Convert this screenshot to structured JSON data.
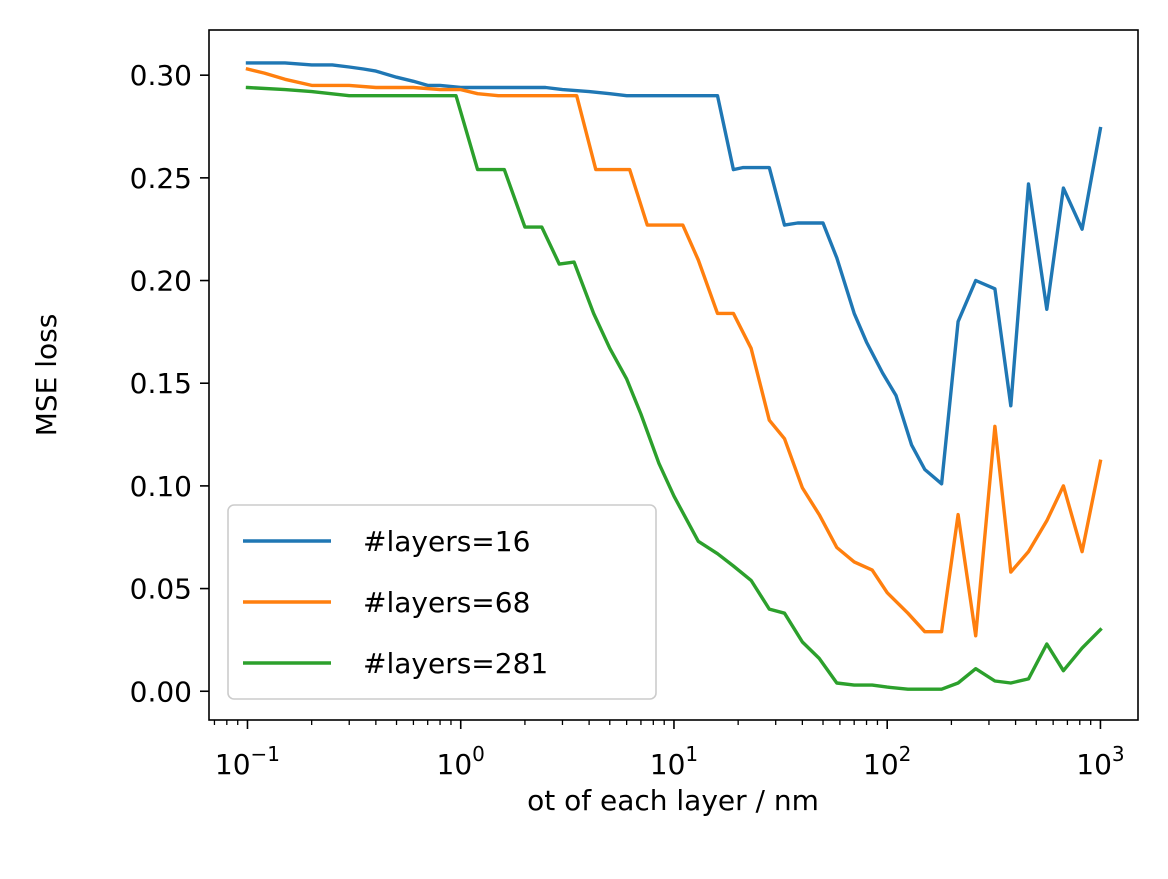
{
  "chart_data": {
    "type": "line",
    "title": "",
    "xlabel": "ot of each layer / nm",
    "ylabel": "MSE loss",
    "xscale": "log",
    "xlim": [
      0.066,
      1500
    ],
    "ylim": [
      -0.014,
      0.322
    ],
    "grid": false,
    "legend_position": "lower-left",
    "x_ticks": [
      {
        "value": 0.1,
        "base": "10",
        "exp": "−1"
      },
      {
        "value": 1,
        "base": "10",
        "exp": "0"
      },
      {
        "value": 10,
        "base": "10",
        "exp": "1"
      },
      {
        "value": 100,
        "base": "10",
        "exp": "2"
      },
      {
        "value": 1000,
        "base": "10",
        "exp": "3"
      }
    ],
    "y_ticks": [
      {
        "value": 0.0,
        "label": "0.00"
      },
      {
        "value": 0.05,
        "label": "0.05"
      },
      {
        "value": 0.1,
        "label": "0.10"
      },
      {
        "value": 0.15,
        "label": "0.15"
      },
      {
        "value": 0.2,
        "label": "0.20"
      },
      {
        "value": 0.25,
        "label": "0.25"
      },
      {
        "value": 0.3,
        "label": "0.30"
      }
    ],
    "series": [
      {
        "name": "#layers=16",
        "color": "#1f77b4",
        "x": [
          0.1,
          0.12,
          0.15,
          0.2,
          0.25,
          0.3,
          0.35,
          0.4,
          0.5,
          0.6,
          0.7,
          0.8,
          1.0,
          1.2,
          1.5,
          2.0,
          2.5,
          3.0,
          4.0,
          5.0,
          6.0,
          7.0,
          8.0,
          10.0,
          12.0,
          15.0,
          16.0,
          19.0,
          21.0,
          24.0,
          28.0,
          33.0,
          38.0,
          43.0,
          50.0,
          58.0,
          70.0,
          80.0,
          95.0,
          110.0,
          130.0,
          150.0,
          180.0,
          215.0,
          260.0,
          320.0,
          380.0,
          460.0,
          560.0,
          670.0,
          820.0,
          1000.0
        ],
        "y": [
          0.306,
          0.306,
          0.306,
          0.305,
          0.305,
          0.304,
          0.303,
          0.302,
          0.299,
          0.297,
          0.295,
          0.295,
          0.294,
          0.294,
          0.294,
          0.294,
          0.294,
          0.293,
          0.292,
          0.291,
          0.29,
          0.29,
          0.29,
          0.29,
          0.29,
          0.29,
          0.29,
          0.254,
          0.255,
          0.255,
          0.255,
          0.227,
          0.228,
          0.228,
          0.228,
          0.211,
          0.184,
          0.17,
          0.155,
          0.144,
          0.12,
          0.108,
          0.101,
          0.18,
          0.2,
          0.196,
          0.139,
          0.247,
          0.186,
          0.245,
          0.225,
          0.274
        ]
      },
      {
        "name": "#layers=68",
        "color": "#ff7f0e",
        "x": [
          0.1,
          0.12,
          0.15,
          0.2,
          0.25,
          0.3,
          0.4,
          0.5,
          0.6,
          0.8,
          1.0,
          1.2,
          1.5,
          2.0,
          2.5,
          3.0,
          3.5,
          4.3,
          5.0,
          6.2,
          7.5,
          9.0,
          11.0,
          13.0,
          16.0,
          19.0,
          23.0,
          28.0,
          33.0,
          40.0,
          48.0,
          58.0,
          70.0,
          85.0,
          100.0,
          125.0,
          150.0,
          180.0,
          215.0,
          260.0,
          320.0,
          380.0,
          460.0,
          560.0,
          670.0,
          820.0,
          1000.0
        ],
        "y": [
          0.303,
          0.301,
          0.298,
          0.295,
          0.295,
          0.295,
          0.294,
          0.294,
          0.294,
          0.293,
          0.293,
          0.291,
          0.29,
          0.29,
          0.29,
          0.29,
          0.29,
          0.254,
          0.254,
          0.254,
          0.227,
          0.227,
          0.227,
          0.21,
          0.184,
          0.184,
          0.167,
          0.132,
          0.123,
          0.099,
          0.086,
          0.07,
          0.063,
          0.059,
          0.048,
          0.038,
          0.029,
          0.029,
          0.086,
          0.027,
          0.129,
          0.058,
          0.068,
          0.083,
          0.1,
          0.068,
          0.112
        ]
      },
      {
        "name": "#layers=281",
        "color": "#2ca02c",
        "x": [
          0.1,
          0.15,
          0.2,
          0.3,
          0.4,
          0.5,
          0.6,
          0.7,
          0.8,
          0.95,
          1.2,
          1.6,
          2.0,
          2.4,
          2.9,
          3.4,
          4.2,
          5.0,
          6.0,
          7.0,
          8.5,
          10.0,
          13.0,
          16.0,
          19.0,
          23.0,
          28.0,
          33.0,
          40.0,
          48.0,
          58.0,
          70.0,
          85.0,
          100.0,
          125.0,
          150.0,
          180.0,
          215.0,
          260.0,
          320.0,
          380.0,
          460.0,
          560.0,
          670.0,
          820.0,
          1000.0
        ],
        "y": [
          0.294,
          0.293,
          0.292,
          0.29,
          0.29,
          0.29,
          0.29,
          0.29,
          0.29,
          0.29,
          0.254,
          0.254,
          0.226,
          0.226,
          0.208,
          0.209,
          0.184,
          0.167,
          0.152,
          0.135,
          0.111,
          0.095,
          0.073,
          0.067,
          0.061,
          0.054,
          0.04,
          0.038,
          0.024,
          0.016,
          0.004,
          0.003,
          0.003,
          0.002,
          0.001,
          0.001,
          0.001,
          0.004,
          0.011,
          0.005,
          0.004,
          0.006,
          0.023,
          0.01,
          0.021,
          0.03
        ]
      }
    ]
  }
}
